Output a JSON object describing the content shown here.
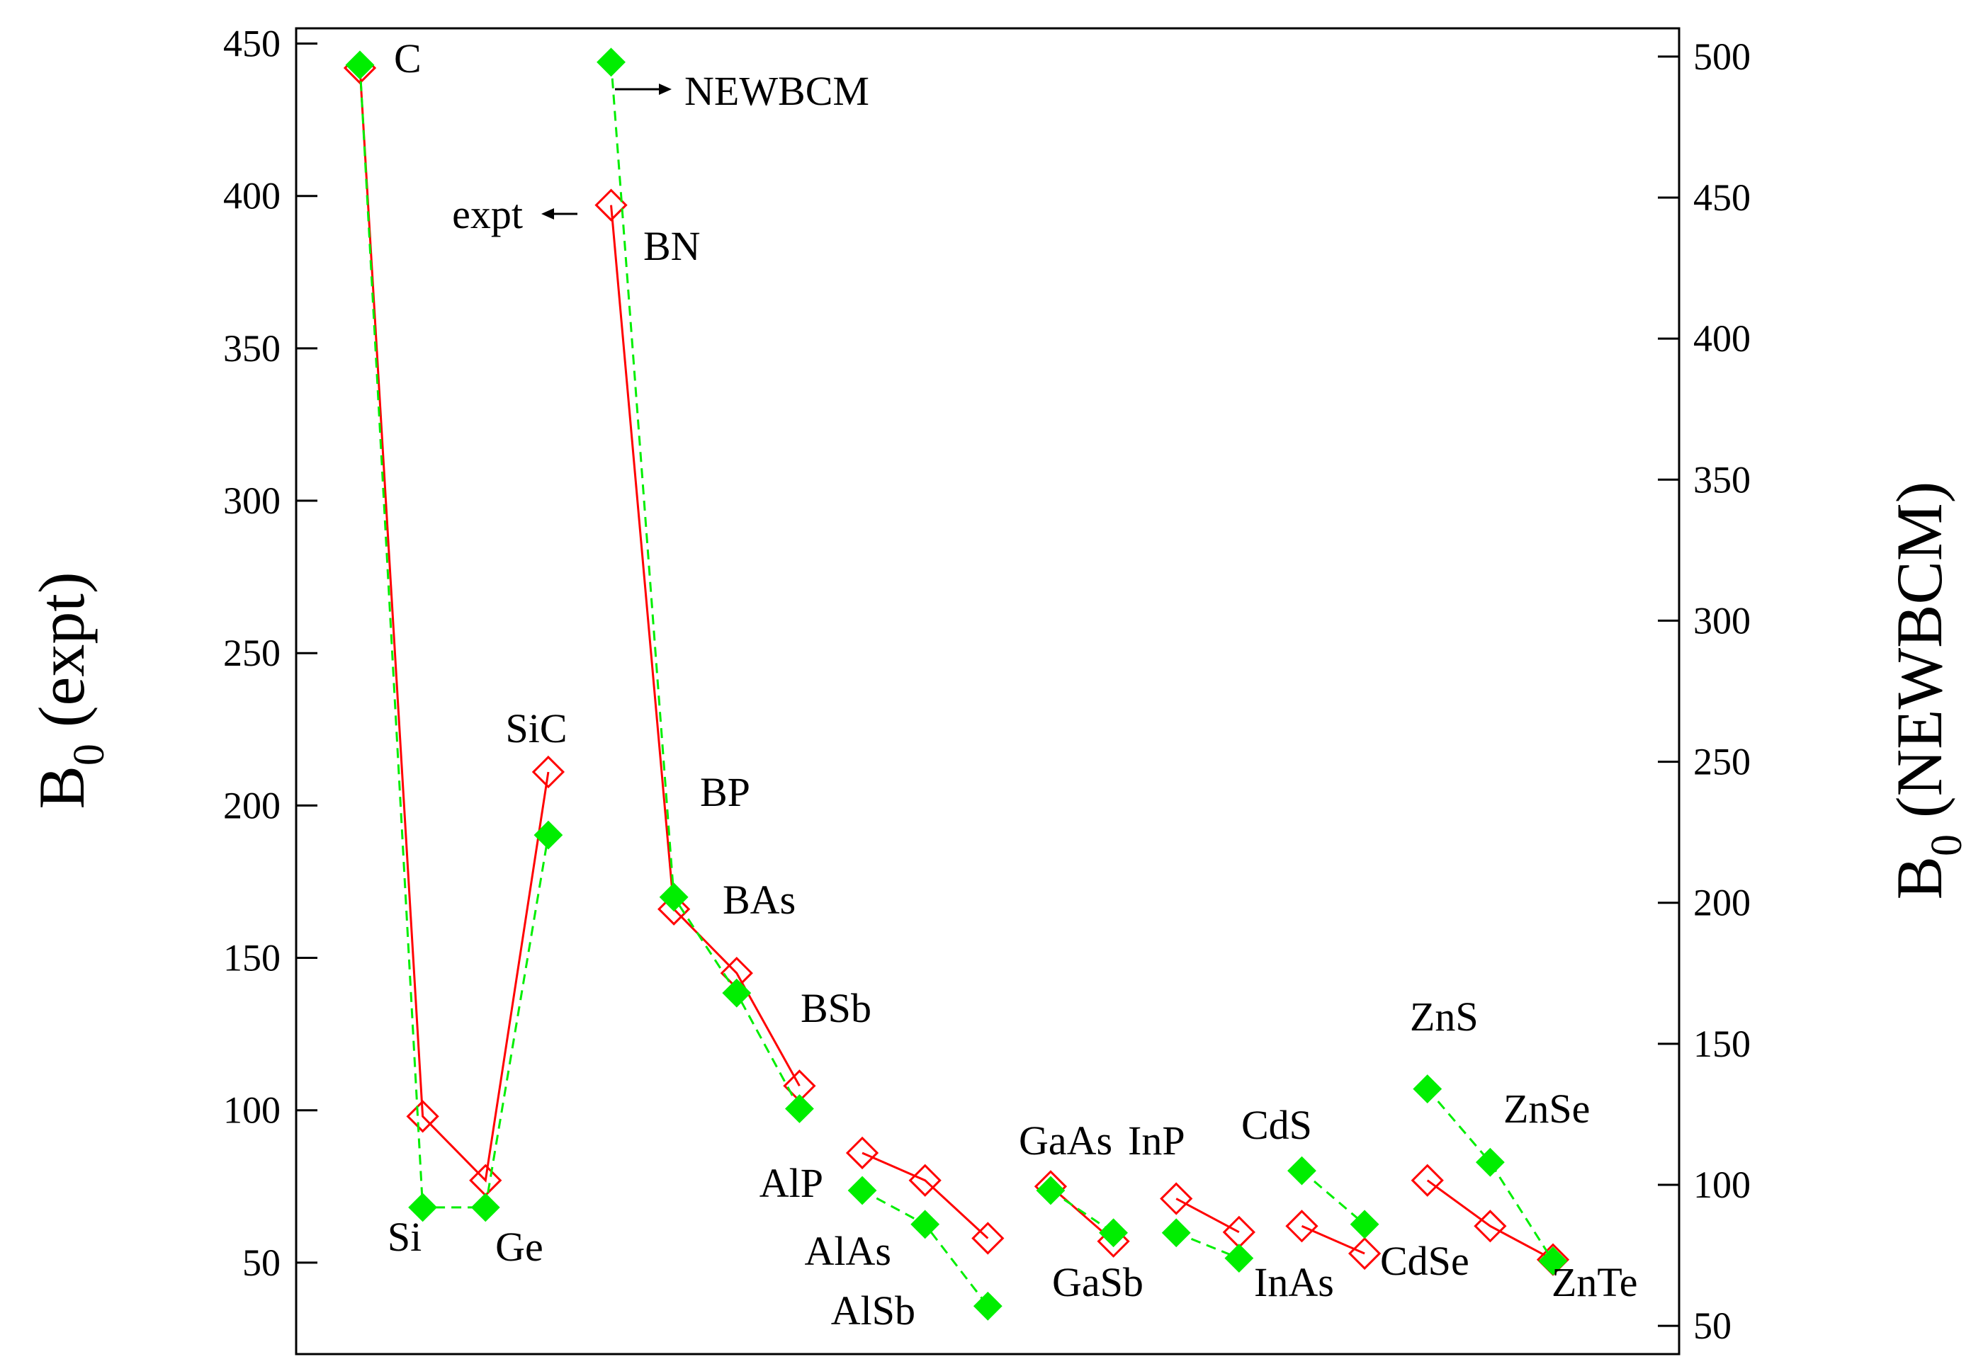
{
  "chart_data": {
    "type": "line",
    "x": [
      1,
      2,
      3,
      4,
      5,
      6,
      7,
      8,
      9,
      10,
      11,
      12,
      13,
      14,
      15,
      16,
      17,
      18,
      19,
      20
    ],
    "labels": [
      "C",
      "Si",
      "Ge",
      "SiC",
      "BN",
      "BP",
      "BAs",
      "BSb",
      "AlP",
      "AlAs",
      "AlSb",
      "GaAs",
      "GaSb",
      "InP",
      "InAs",
      "CdS",
      "CdSe",
      "ZnS",
      "ZnSe",
      "ZnTe"
    ],
    "series": [
      {
        "name": "expt",
        "axis": "left",
        "color": "#ff0000",
        "line": "solid",
        "marker": "open-diamond",
        "groups": [
          [
            0,
            1,
            2,
            3
          ],
          [
            4,
            5,
            6,
            7
          ],
          [
            8,
            9,
            10
          ],
          [
            11,
            12
          ],
          [
            13,
            14
          ],
          [
            15,
            16
          ],
          [
            17,
            18,
            19
          ]
        ],
        "values": [
          442,
          98,
          77,
          211,
          397,
          166,
          145,
          108,
          86,
          77,
          58,
          75,
          57,
          71,
          60,
          62,
          53,
          77,
          62,
          51
        ]
      },
      {
        "name": "NEWBCM",
        "axis": "right",
        "color": "#00ee00",
        "line": "dashed",
        "marker": "filled-diamond",
        "groups": [
          [
            0,
            1,
            2,
            3
          ],
          [
            4,
            5,
            6,
            7
          ],
          [
            8,
            9,
            10
          ],
          [
            11,
            12
          ],
          [
            13,
            14
          ],
          [
            15,
            16
          ],
          [
            17,
            18,
            19
          ]
        ],
        "values": [
          497,
          92,
          92,
          224,
          498,
          202,
          168,
          127,
          98,
          86,
          57,
          98,
          83,
          83,
          74,
          105,
          86,
          134,
          108,
          73
        ]
      }
    ],
    "ylabel_left": {
      "main": "B",
      "sub": "0",
      "rest": " (expt)"
    },
    "ylabel_right": {
      "main": "B",
      "sub": "0",
      "rest": " (NEWBCM)"
    },
    "ylim_left": [
      20,
      455
    ],
    "ylim_right": [
      40,
      510
    ],
    "yticks_left": [
      50,
      100,
      150,
      200,
      250,
      300,
      350,
      400,
      450
    ],
    "yticks_right": [
      50,
      100,
      150,
      200,
      250,
      300,
      350,
      400,
      450,
      500
    ],
    "annotations": [
      {
        "text": "expt",
        "arrow": "left"
      },
      {
        "text": "NEWBCM",
        "arrow": "right"
      }
    ],
    "grid": false,
    "legend": "none"
  }
}
